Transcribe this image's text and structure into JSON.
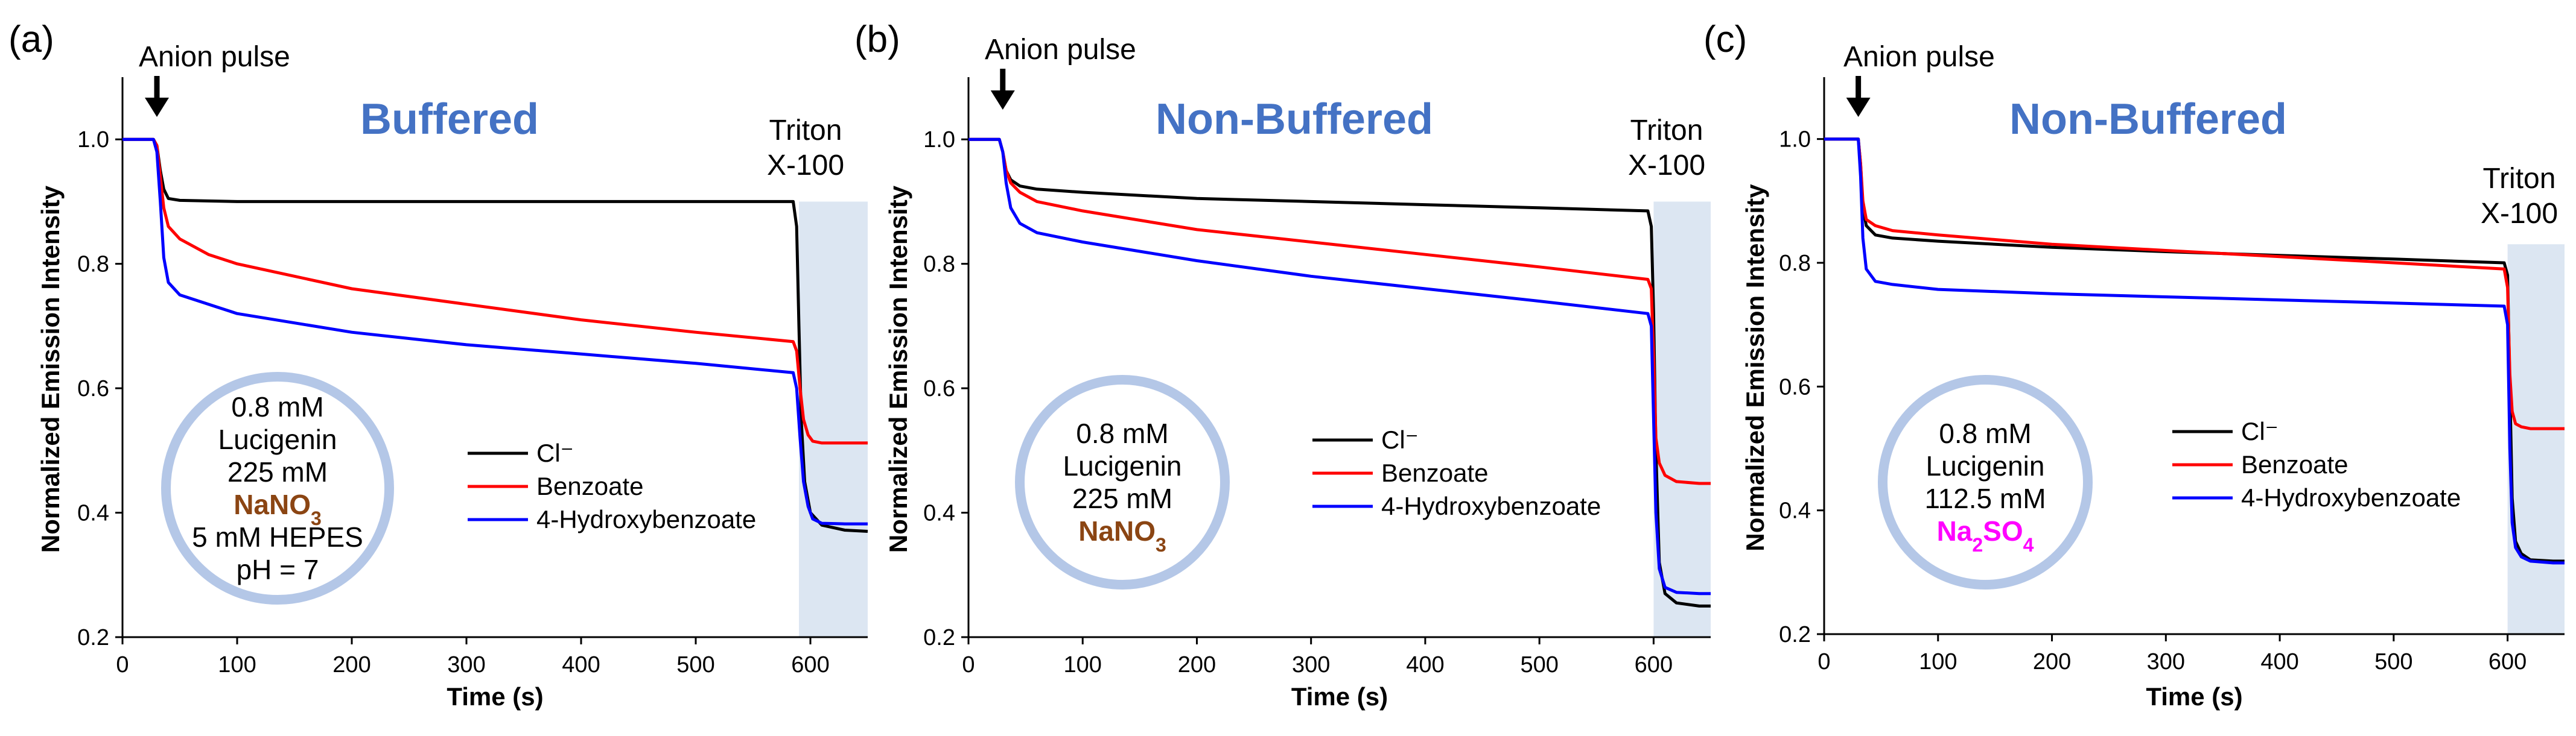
{
  "chart_data": [
    {
      "type": "line",
      "panel": "(a)",
      "title": "Buffered",
      "xlabel": "Time (s)",
      "ylabel": "Normalized Emission Intensity",
      "xlim": [
        0,
        650
      ],
      "ylim": [
        0.2,
        1.1
      ],
      "xticks": [
        0,
        100,
        200,
        300,
        400,
        500,
        600
      ],
      "xtick_labels": [
        "0",
        "100",
        "200",
        "300",
        "400",
        "500",
        "600"
      ],
      "yticks": [
        0.2,
        0.4,
        0.6,
        0.8,
        1.0
      ],
      "ytick_labels": [
        "0.2",
        "0.4",
        "0.6",
        "0.8",
        "1.0"
      ],
      "pulse_label": "Anion pulse",
      "pulse_time": 30,
      "triton_label_line1": "Triton",
      "triton_label_line2": "X-100",
      "triton_start": 590,
      "triton_ymax": 0.9,
      "circle_lines": [
        "0.8 mM",
        "Lucigenin",
        "225 mM"
      ],
      "salt_label": "NaNO3",
      "salt_parts": [
        {
          "t": "NaNO",
          "sub": false
        },
        {
          "t": "3",
          "sub": true
        }
      ],
      "salt_color": "#8B4513",
      "circle_extra": [
        "5 mM HEPES",
        "pH = 7"
      ],
      "series": [
        {
          "name": "Cl⁻",
          "color": "#000000",
          "x": [
            0,
            27,
            30,
            33,
            36,
            40,
            50,
            100,
            200,
            300,
            400,
            500,
            585,
            588,
            590,
            592,
            595,
            600,
            610,
            630,
            650
          ],
          "y": [
            1.0,
            1.0,
            0.99,
            0.95,
            0.92,
            0.905,
            0.902,
            0.9,
            0.9,
            0.9,
            0.9,
            0.9,
            0.9,
            0.86,
            0.7,
            0.55,
            0.45,
            0.4,
            0.38,
            0.372,
            0.37
          ]
        },
        {
          "name": "Benzoate",
          "color": "#FF0000",
          "x": [
            0,
            27,
            30,
            33,
            36,
            40,
            50,
            75,
            100,
            150,
            200,
            300,
            400,
            500,
            585,
            588,
            591,
            594,
            598,
            602,
            610,
            630,
            650
          ],
          "y": [
            1.0,
            1.0,
            0.99,
            0.94,
            0.89,
            0.86,
            0.84,
            0.815,
            0.8,
            0.78,
            0.76,
            0.735,
            0.71,
            0.69,
            0.675,
            0.66,
            0.6,
            0.55,
            0.525,
            0.515,
            0.512,
            0.512,
            0.512
          ]
        },
        {
          "name": "4-Hydroxybenzoate",
          "color": "#0000FF",
          "x": [
            0,
            27,
            30,
            33,
            36,
            40,
            50,
            75,
            100,
            150,
            200,
            300,
            400,
            500,
            585,
            588,
            591,
            594,
            598,
            602,
            610,
            630,
            650
          ],
          "y": [
            1.0,
            1.0,
            0.98,
            0.9,
            0.81,
            0.77,
            0.75,
            0.735,
            0.72,
            0.705,
            0.69,
            0.67,
            0.655,
            0.64,
            0.625,
            0.6,
            0.52,
            0.45,
            0.41,
            0.39,
            0.383,
            0.382,
            0.382
          ]
        }
      ]
    },
    {
      "type": "line",
      "panel": "(b)",
      "title": "Non-Buffered",
      "xlabel": "Time (s)",
      "ylabel": "Normalized Emission Intensity",
      "xlim": [
        0,
        650
      ],
      "ylim": [
        0.2,
        1.1
      ],
      "xticks": [
        0,
        100,
        200,
        300,
        400,
        500,
        600
      ],
      "xtick_labels": [
        "0",
        "100",
        "200",
        "300",
        "400",
        "500",
        "600"
      ],
      "yticks": [
        0.2,
        0.4,
        0.6,
        0.8,
        1.0
      ],
      "ytick_labels": [
        "0.2",
        "0.4",
        "0.6",
        "0.8",
        "1.0"
      ],
      "pulse_label": "Anion pulse",
      "pulse_time": 30,
      "triton_label_line1": "Triton",
      "triton_label_line2": "X-100",
      "triton_start": 600,
      "triton_ymax": 0.9,
      "circle_lines": [
        "0.8 mM",
        "Lucigenin",
        "225 mM"
      ],
      "salt_label": "NaNO3",
      "salt_parts": [
        {
          "t": "NaNO",
          "sub": false
        },
        {
          "t": "3",
          "sub": true
        }
      ],
      "salt_color": "#8B4513",
      "circle_extra": [],
      "series": [
        {
          "name": "Cl⁻",
          "color": "#000000",
          "x": [
            0,
            27,
            30,
            33,
            37,
            45,
            60,
            100,
            200,
            300,
            400,
            500,
            595,
            598,
            600,
            602,
            605,
            610,
            620,
            640,
            650
          ],
          "y": [
            1.0,
            1.0,
            0.98,
            0.95,
            0.935,
            0.925,
            0.92,
            0.915,
            0.905,
            0.9,
            0.895,
            0.89,
            0.885,
            0.86,
            0.72,
            0.5,
            0.32,
            0.27,
            0.255,
            0.25,
            0.25
          ]
        },
        {
          "name": "Benzoate",
          "color": "#FF0000",
          "x": [
            0,
            27,
            30,
            33,
            37,
            45,
            60,
            100,
            200,
            300,
            400,
            500,
            595,
            598,
            600,
            602,
            605,
            610,
            620,
            640,
            650
          ],
          "y": [
            1.0,
            1.0,
            0.98,
            0.95,
            0.93,
            0.915,
            0.9,
            0.885,
            0.855,
            0.835,
            0.815,
            0.795,
            0.775,
            0.76,
            0.65,
            0.52,
            0.48,
            0.46,
            0.45,
            0.447,
            0.447
          ]
        },
        {
          "name": "4-Hydroxybenzoate",
          "color": "#0000FF",
          "x": [
            0,
            27,
            30,
            33,
            37,
            45,
            60,
            100,
            200,
            300,
            400,
            500,
            595,
            598,
            600,
            602,
            605,
            610,
            620,
            640,
            650
          ],
          "y": [
            1.0,
            1.0,
            0.98,
            0.93,
            0.89,
            0.865,
            0.85,
            0.835,
            0.805,
            0.78,
            0.76,
            0.74,
            0.72,
            0.7,
            0.55,
            0.4,
            0.31,
            0.28,
            0.272,
            0.27,
            0.27
          ]
        }
      ]
    },
    {
      "type": "line",
      "panel": "(c)",
      "title": "Non-Buffered",
      "xlabel": "Time (s)",
      "ylabel": "Normalized Emission Intensity",
      "xlim": [
        0,
        650
      ],
      "ylim": [
        0.2,
        1.1
      ],
      "xticks": [
        0,
        100,
        200,
        300,
        400,
        500,
        600
      ],
      "xtick_labels": [
        "0",
        "100",
        "200",
        "300",
        "400",
        "500",
        "600"
      ],
      "yticks": [
        0.2,
        0.4,
        0.6,
        0.8,
        1.0
      ],
      "ytick_labels": [
        "0.2",
        "0.4",
        "0.6",
        "0.8",
        "1.0"
      ],
      "pulse_label": "Anion pulse",
      "pulse_time": 30,
      "triton_label_line1": "Triton",
      "triton_label_line2": "X-100",
      "triton_start": 600,
      "triton_ymax": 0.83,
      "circle_lines": [
        "0.8 mM",
        "Lucigenin",
        "112.5 mM"
      ],
      "salt_label": "Na2SO4",
      "salt_parts": [
        {
          "t": "Na",
          "sub": false
        },
        {
          "t": "2",
          "sub": true
        },
        {
          "t": "SO",
          "sub": false
        },
        {
          "t": "4",
          "sub": true
        }
      ],
      "salt_color": "#FF00FF",
      "circle_extra": [],
      "series": [
        {
          "name": "Cl⁻",
          "color": "#000000",
          "x": [
            0,
            30,
            32,
            34,
            37,
            45,
            60,
            100,
            200,
            300,
            400,
            500,
            597,
            600,
            602,
            604,
            607,
            612,
            620,
            640,
            650
          ],
          "y": [
            1.0,
            1.0,
            0.96,
            0.89,
            0.86,
            0.845,
            0.84,
            0.835,
            0.825,
            0.818,
            0.812,
            0.806,
            0.8,
            0.78,
            0.6,
            0.42,
            0.35,
            0.33,
            0.32,
            0.318,
            0.318
          ]
        },
        {
          "name": "Benzoate",
          "color": "#FF0000",
          "x": [
            0,
            30,
            32,
            34,
            37,
            45,
            60,
            100,
            200,
            300,
            400,
            500,
            597,
            600,
            602,
            604,
            607,
            612,
            620,
            640,
            650
          ],
          "y": [
            1.0,
            1.0,
            0.96,
            0.9,
            0.87,
            0.86,
            0.852,
            0.845,
            0.83,
            0.82,
            0.81,
            0.8,
            0.79,
            0.76,
            0.62,
            0.56,
            0.54,
            0.535,
            0.532,
            0.532,
            0.532
          ]
        },
        {
          "name": "4-Hydroxybenzoate",
          "color": "#0000FF",
          "x": [
            0,
            30,
            32,
            34,
            37,
            45,
            60,
            100,
            200,
            300,
            400,
            500,
            597,
            600,
            602,
            604,
            607,
            612,
            620,
            640,
            650
          ],
          "y": [
            1.0,
            1.0,
            0.94,
            0.84,
            0.79,
            0.77,
            0.765,
            0.757,
            0.75,
            0.745,
            0.74,
            0.735,
            0.73,
            0.7,
            0.5,
            0.38,
            0.34,
            0.325,
            0.318,
            0.315,
            0.315
          ]
        }
      ]
    }
  ]
}
